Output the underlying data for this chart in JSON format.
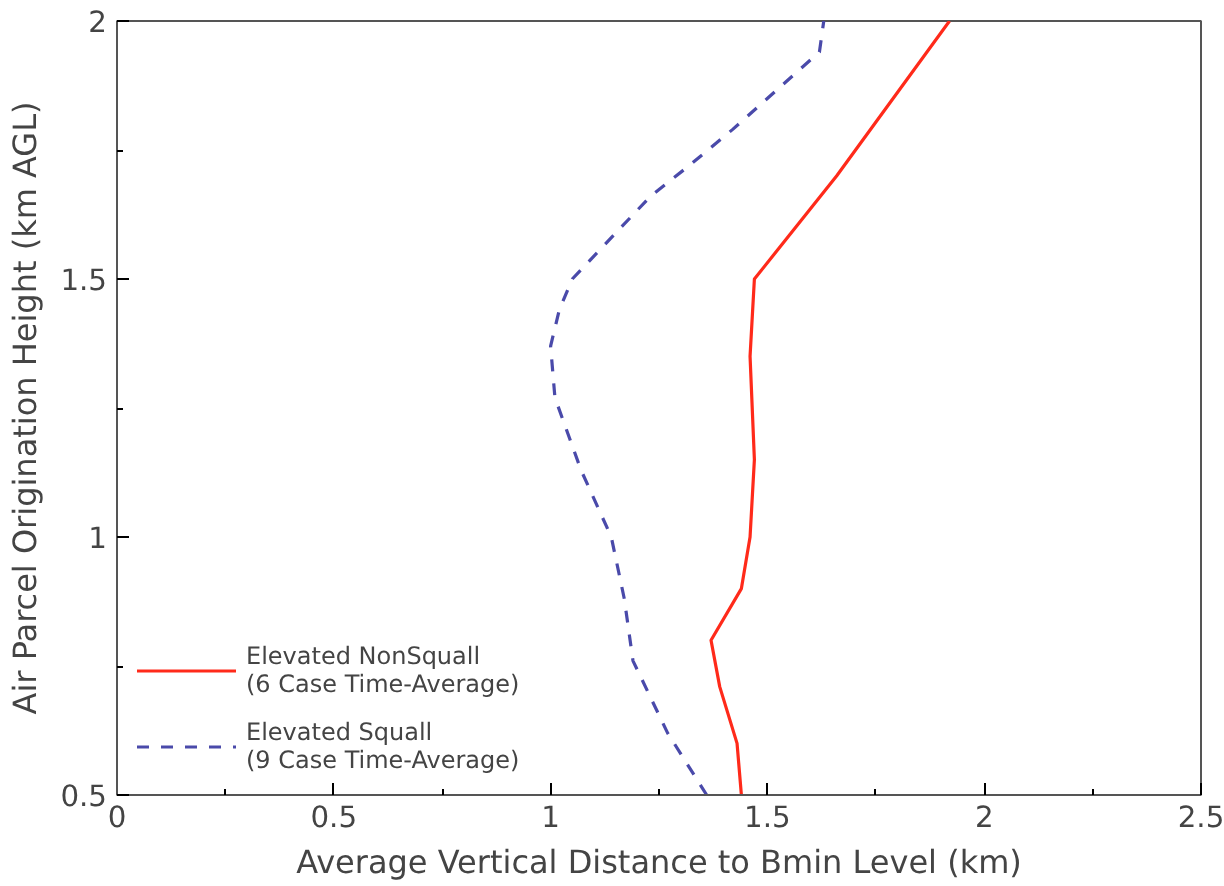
{
  "chart_data": {
    "type": "line",
    "xlabel": "Average Vertical Distance to Bmin Level (km)",
    "ylabel": "Air Parcel Origination Height (km AGL)",
    "xlim": [
      0,
      2.5
    ],
    "ylim": [
      0.5,
      2
    ],
    "xticks": [
      0,
      0.5,
      1,
      1.5,
      2,
      2.5
    ],
    "yticks": [
      0.5,
      1,
      1.5,
      2
    ],
    "grid": false,
    "legend": "bottom left",
    "series": [
      {
        "name": "Elevated NonSquall\n(6 Case Time-Average)",
        "color": "#ff2a1a",
        "line_style": "solid",
        "x": [
          1.44,
          1.44,
          1.43,
          1.39,
          1.37,
          1.44,
          1.46,
          1.47,
          1.46,
          1.47,
          1.66,
          1.92
        ],
        "values": [
          0.5,
          0.5,
          0.6,
          0.71,
          0.8,
          0.9,
          1.0,
          1.15,
          1.35,
          1.5,
          1.7,
          2.0
        ]
      },
      {
        "name": "Elevated Squall\n(9 Case Time-Average)",
        "color": "#4a4aaa",
        "line_style": "dashed",
        "x": [
          1.36,
          1.27,
          1.19,
          1.17,
          1.14,
          1.07,
          1.01,
          1.0,
          1.02,
          1.05,
          1.23,
          1.32,
          1.42,
          1.62,
          1.63
        ],
        "values": [
          0.5,
          0.62,
          0.76,
          0.88,
          1.0,
          1.13,
          1.27,
          1.37,
          1.44,
          1.5,
          1.66,
          1.72,
          1.79,
          1.94,
          2.0
        ]
      }
    ]
  }
}
